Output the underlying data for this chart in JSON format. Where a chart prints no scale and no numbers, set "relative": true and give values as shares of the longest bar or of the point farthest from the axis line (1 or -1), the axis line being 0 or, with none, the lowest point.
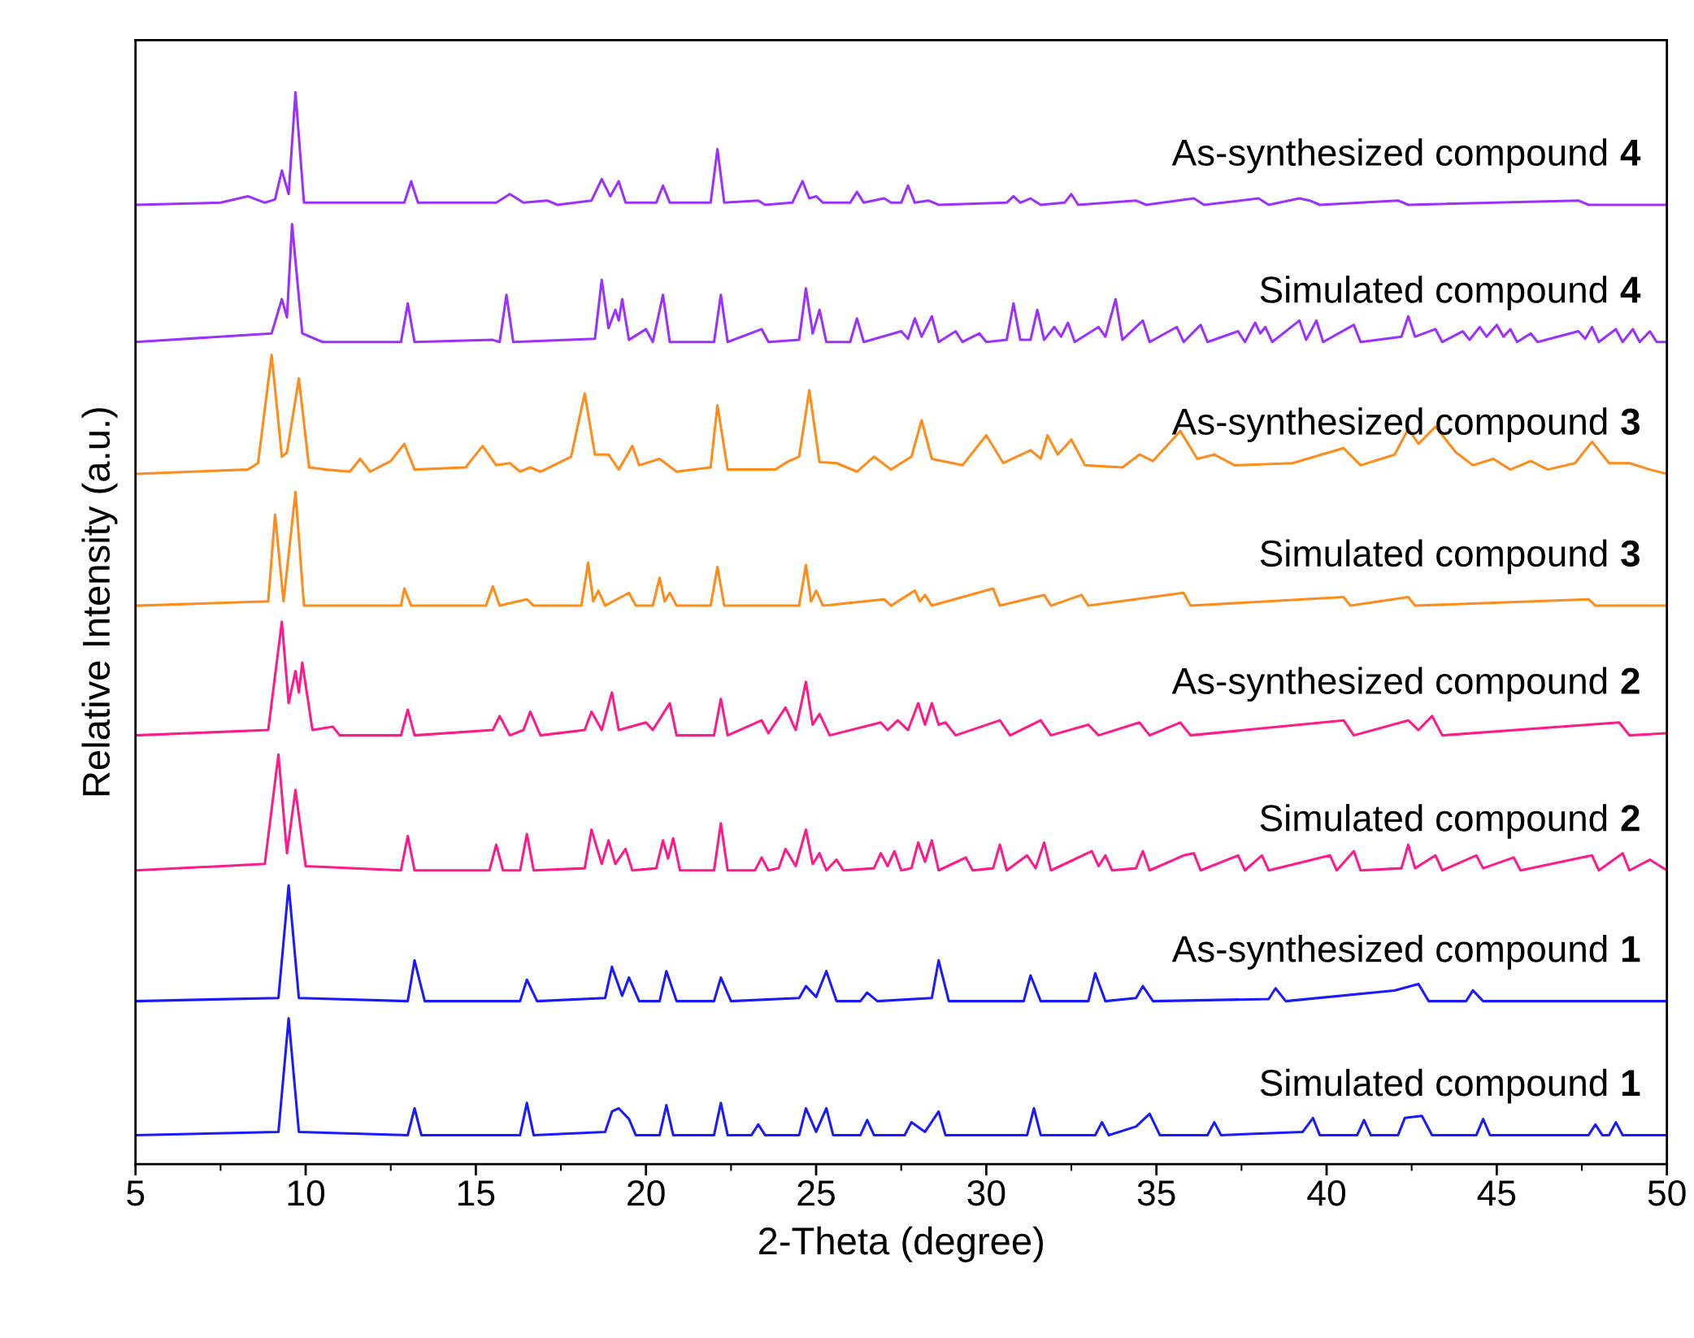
{
  "chart_data": {
    "type": "line",
    "relative": true,
    "xlabel": "2-Theta (degree)",
    "ylabel": "Relative Intensity (a.u.)",
    "xlim": [
      5,
      50
    ],
    "xticks": [
      5,
      10,
      15,
      20,
      25,
      30,
      35,
      40,
      45,
      50
    ],
    "legend": false,
    "marker": "none",
    "line_style": "solid",
    "series": [
      {
        "name": "Simulated compound 1",
        "color": "#1a1aff",
        "x": [
          5,
          9.2,
          9.5,
          9.8,
          13.0,
          13.2,
          13.4,
          16.3,
          16.5,
          16.7,
          18.8,
          19.0,
          19.2,
          19.5,
          19.7,
          20.4,
          20.6,
          20.8,
          22.0,
          22.2,
          22.4,
          23.1,
          23.3,
          23.5,
          24.5,
          24.7,
          25.0,
          25.3,
          25.5,
          26.3,
          26.5,
          26.7,
          27.6,
          27.8,
          28.2,
          28.6,
          28.8,
          31.2,
          31.4,
          31.6,
          33.2,
          33.4,
          33.6,
          34.4,
          34.8,
          35.1,
          36.5,
          36.7,
          36.9,
          39.3,
          39.6,
          39.8,
          40.9,
          41.1,
          41.3,
          42.1,
          42.3,
          42.8,
          43.1,
          44.4,
          44.6,
          44.8,
          47.7,
          47.9,
          48.1,
          48.3,
          48.5,
          48.7,
          50
        ],
        "values": [
          0.027,
          0.03,
          0.136,
          0.03,
          0.027,
          0.052,
          0.027,
          0.027,
          0.057,
          0.027,
          0.03,
          0.049,
          0.052,
          0.042,
          0.027,
          0.027,
          0.055,
          0.027,
          0.027,
          0.057,
          0.027,
          0.027,
          0.037,
          0.027,
          0.027,
          0.052,
          0.03,
          0.052,
          0.027,
          0.027,
          0.041,
          0.027,
          0.027,
          0.039,
          0.03,
          0.049,
          0.027,
          0.027,
          0.052,
          0.027,
          0.027,
          0.039,
          0.027,
          0.035,
          0.047,
          0.027,
          0.027,
          0.039,
          0.027,
          0.03,
          0.043,
          0.027,
          0.027,
          0.041,
          0.027,
          0.027,
          0.043,
          0.045,
          0.027,
          0.027,
          0.042,
          0.027,
          0.027,
          0.037,
          0.027,
          0.027,
          0.039,
          0.027,
          0.027
        ]
      },
      {
        "name": "As-synthesized compound 1",
        "color": "#1a1aff",
        "x": [
          5,
          9.2,
          9.5,
          9.8,
          13.0,
          13.2,
          13.5,
          16.3,
          16.5,
          16.8,
          18.8,
          19.0,
          19.3,
          19.5,
          19.8,
          20.4,
          20.6,
          20.9,
          22.0,
          22.2,
          22.5,
          24.5,
          24.7,
          25.0,
          25.3,
          25.6,
          26.3,
          26.5,
          26.8,
          28.4,
          28.6,
          28.9,
          31.1,
          31.3,
          31.6,
          33.0,
          33.2,
          33.5,
          34.4,
          34.6,
          34.9,
          38.3,
          38.5,
          38.8,
          42.0,
          42.7,
          43.0,
          44.1,
          44.3,
          44.6,
          50
        ],
        "values": [
          0.152,
          0.155,
          0.26,
          0.155,
          0.152,
          0.19,
          0.152,
          0.152,
          0.172,
          0.152,
          0.155,
          0.184,
          0.157,
          0.174,
          0.152,
          0.152,
          0.18,
          0.152,
          0.152,
          0.174,
          0.152,
          0.155,
          0.166,
          0.156,
          0.18,
          0.152,
          0.152,
          0.16,
          0.152,
          0.155,
          0.19,
          0.152,
          0.152,
          0.176,
          0.152,
          0.152,
          0.178,
          0.152,
          0.155,
          0.166,
          0.152,
          0.154,
          0.164,
          0.152,
          0.162,
          0.168,
          0.152,
          0.152,
          0.162,
          0.152,
          0.152
        ]
      },
      {
        "name": "Simulated compound 2",
        "color": "#ff1a8c",
        "x": [
          5,
          8.8,
          9.2,
          9.45,
          9.7,
          10.0,
          12.8,
          13.0,
          13.2,
          15.4,
          15.6,
          15.8,
          16.3,
          16.5,
          16.7,
          18.2,
          18.4,
          18.7,
          18.9,
          19.1,
          19.4,
          19.6,
          20.3,
          20.5,
          20.65,
          20.8,
          21.0,
          22.0,
          22.2,
          22.4,
          23.2,
          23.4,
          23.6,
          23.9,
          24.1,
          24.4,
          24.7,
          24.9,
          25.1,
          25.3,
          25.6,
          25.8,
          26.7,
          26.9,
          27.1,
          27.3,
          27.5,
          27.8,
          28.0,
          28.2,
          28.4,
          28.6,
          29.4,
          29.6,
          30.2,
          30.4,
          30.6,
          31.2,
          31.45,
          31.7,
          31.9,
          33.1,
          33.3,
          33.5,
          33.7,
          34.4,
          34.6,
          34.8,
          35.8,
          36.1,
          36.3,
          37.4,
          37.6,
          38.1,
          38.3,
          40.1,
          40.3,
          40.8,
          41.0,
          42.2,
          42.4,
          42.6,
          43.2,
          43.4,
          44.4,
          44.6,
          45.5,
          45.7,
          47.8,
          48.0,
          48.7,
          48.9,
          49.5,
          50
        ],
        "values": [
          0.274,
          0.28,
          0.382,
          0.29,
          0.349,
          0.278,
          0.274,
          0.306,
          0.274,
          0.274,
          0.298,
          0.274,
          0.274,
          0.308,
          0.274,
          0.276,
          0.312,
          0.28,
          0.302,
          0.28,
          0.294,
          0.274,
          0.276,
          0.302,
          0.285,
          0.304,
          0.274,
          0.274,
          0.318,
          0.274,
          0.274,
          0.286,
          0.274,
          0.276,
          0.294,
          0.278,
          0.312,
          0.28,
          0.29,
          0.274,
          0.284,
          0.274,
          0.276,
          0.29,
          0.278,
          0.292,
          0.274,
          0.276,
          0.3,
          0.282,
          0.302,
          0.274,
          0.286,
          0.274,
          0.276,
          0.298,
          0.274,
          0.288,
          0.276,
          0.3,
          0.274,
          0.292,
          0.278,
          0.288,
          0.274,
          0.276,
          0.292,
          0.274,
          0.288,
          0.29,
          0.274,
          0.288,
          0.274,
          0.288,
          0.274,
          0.288,
          0.274,
          0.292,
          0.274,
          0.276,
          0.298,
          0.276,
          0.288,
          0.274,
          0.288,
          0.276,
          0.286,
          0.274,
          0.288,
          0.274,
          0.29,
          0.274,
          0.284,
          0.274
        ]
      },
      {
        "name": "As-synthesized compound 2",
        "color": "#ff1a8c",
        "x": [
          5,
          8.9,
          9.3,
          9.5,
          9.7,
          9.8,
          9.9,
          10.2,
          10.8,
          11.0,
          12.8,
          13.0,
          13.2,
          15.5,
          15.7,
          16.0,
          16.4,
          16.6,
          16.9,
          18.2,
          18.4,
          18.7,
          19.0,
          19.2,
          20.0,
          20.2,
          20.7,
          20.9,
          22.0,
          22.2,
          22.4,
          23.4,
          23.6,
          24.1,
          24.4,
          24.7,
          24.9,
          25.1,
          25.4,
          26.9,
          27.1,
          27.4,
          27.7,
          28.0,
          28.2,
          28.4,
          28.6,
          28.8,
          29.1,
          30.4,
          30.7,
          31.6,
          31.9,
          33.0,
          33.3,
          34.5,
          34.8,
          35.7,
          36.0,
          40.5,
          40.8,
          42.4,
          42.7,
          43.1,
          43.4,
          48.6,
          48.9,
          50
        ],
        "values": [
          0.4,
          0.405,
          0.506,
          0.43,
          0.46,
          0.44,
          0.468,
          0.405,
          0.408,
          0.4,
          0.4,
          0.424,
          0.4,
          0.405,
          0.418,
          0.4,
          0.405,
          0.422,
          0.4,
          0.405,
          0.422,
          0.405,
          0.44,
          0.405,
          0.412,
          0.405,
          0.43,
          0.4,
          0.4,
          0.434,
          0.4,
          0.414,
          0.402,
          0.426,
          0.405,
          0.45,
          0.41,
          0.42,
          0.4,
          0.412,
          0.405,
          0.414,
          0.405,
          0.43,
          0.41,
          0.43,
          0.41,
          0.412,
          0.4,
          0.414,
          0.4,
          0.414,
          0.4,
          0.41,
          0.4,
          0.412,
          0.4,
          0.412,
          0.4,
          0.414,
          0.4,
          0.414,
          0.405,
          0.418,
          0.4,
          0.412,
          0.4,
          0.402
        ]
      },
      {
        "name": "Simulated compound 3",
        "color": "#ff8c1a",
        "x": [
          5,
          8.9,
          9.1,
          9.35,
          9.7,
          9.95,
          12.8,
          12.9,
          13.1,
          15.3,
          15.5,
          15.7,
          16.5,
          16.7,
          18.1,
          18.3,
          18.45,
          18.6,
          18.8,
          19.5,
          19.7,
          20.2,
          20.4,
          20.55,
          20.7,
          20.9,
          21.9,
          22.1,
          22.3,
          24.5,
          24.7,
          24.85,
          25.0,
          25.2,
          27.0,
          27.2,
          27.9,
          28.05,
          28.2,
          28.4,
          30.2,
          30.4,
          31.7,
          31.9,
          32.8,
          33.0,
          35.8,
          36.0,
          40.5,
          40.7,
          42.4,
          42.6,
          47.7,
          47.9,
          50
        ],
        "values": [
          0.521,
          0.525,
          0.606,
          0.525,
          0.627,
          0.521,
          0.521,
          0.537,
          0.521,
          0.521,
          0.539,
          0.521,
          0.527,
          0.521,
          0.521,
          0.561,
          0.525,
          0.535,
          0.521,
          0.533,
          0.521,
          0.521,
          0.547,
          0.525,
          0.533,
          0.521,
          0.521,
          0.557,
          0.521,
          0.521,
          0.559,
          0.525,
          0.535,
          0.521,
          0.527,
          0.521,
          0.535,
          0.525,
          0.531,
          0.521,
          0.537,
          0.521,
          0.531,
          0.521,
          0.531,
          0.521,
          0.533,
          0.521,
          0.529,
          0.521,
          0.529,
          0.521,
          0.527,
          0.521,
          0.521
        ]
      },
      {
        "name": "As-synthesized compound 3",
        "color": "#ff8c1a",
        "x": [
          5,
          8.3,
          8.6,
          9.0,
          9.3,
          9.45,
          9.8,
          10.1,
          10.6,
          11.3,
          11.6,
          11.9,
          12.5,
          12.9,
          13.2,
          14.7,
          15.2,
          15.6,
          16.0,
          16.3,
          16.6,
          16.9,
          17.8,
          18.2,
          18.5,
          18.9,
          19.2,
          19.6,
          19.8,
          20.4,
          20.9,
          21.9,
          22.1,
          22.4,
          23.8,
          24.2,
          24.5,
          24.8,
          25.1,
          25.6,
          26.2,
          26.7,
          27.2,
          27.8,
          28.1,
          28.4,
          29.3,
          30.0,
          30.5,
          31.3,
          31.6,
          31.8,
          32.1,
          32.5,
          32.9,
          34.0,
          34.5,
          34.9,
          35.7,
          36.2,
          36.7,
          37.3,
          39.0,
          40.5,
          41.0,
          42.0,
          42.4,
          42.7,
          43.2,
          43.8,
          44.3,
          44.9,
          45.4,
          46.0,
          46.5,
          47.3,
          47.8,
          48.3,
          48.9,
          49.5,
          50
        ],
        "values": [
          0.644,
          0.648,
          0.654,
          0.755,
          0.66,
          0.664,
          0.733,
          0.65,
          0.648,
          0.646,
          0.658,
          0.646,
          0.656,
          0.672,
          0.648,
          0.65,
          0.67,
          0.652,
          0.654,
          0.646,
          0.65,
          0.646,
          0.66,
          0.719,
          0.662,
          0.662,
          0.648,
          0.67,
          0.652,
          0.658,
          0.646,
          0.65,
          0.708,
          0.648,
          0.648,
          0.656,
          0.66,
          0.722,
          0.655,
          0.654,
          0.646,
          0.66,
          0.648,
          0.66,
          0.694,
          0.658,
          0.652,
          0.68,
          0.654,
          0.666,
          0.658,
          0.68,
          0.662,
          0.676,
          0.652,
          0.65,
          0.662,
          0.656,
          0.684,
          0.658,
          0.662,
          0.652,
          0.654,
          0.668,
          0.652,
          0.662,
          0.686,
          0.672,
          0.688,
          0.664,
          0.652,
          0.658,
          0.648,
          0.656,
          0.648,
          0.654,
          0.674,
          0.654,
          0.654,
          0.648,
          0.644
        ]
      },
      {
        "name": "Simulated compound 4",
        "color": "#9b30ff",
        "x": [
          5,
          9.0,
          9.3,
          9.45,
          9.6,
          9.9,
          10.5,
          12.8,
          13.0,
          13.2,
          15.5,
          15.7,
          15.9,
          16.1,
          18.5,
          18.7,
          18.9,
          19.1,
          19.2,
          19.3,
          19.5,
          20.0,
          20.2,
          20.5,
          20.7,
          22.0,
          22.2,
          22.4,
          23.4,
          23.6,
          24.5,
          24.7,
          24.9,
          25.1,
          25.3,
          26.0,
          26.2,
          26.4,
          27.5,
          27.7,
          27.9,
          28.1,
          28.4,
          28.6,
          29.1,
          29.3,
          29.8,
          30.0,
          30.6,
          30.8,
          31.0,
          31.3,
          31.5,
          31.7,
          32.0,
          32.2,
          32.4,
          32.6,
          33.3,
          33.5,
          33.8,
          34.0,
          34.6,
          34.8,
          35.6,
          35.8,
          36.3,
          36.5,
          37.4,
          37.6,
          37.9,
          38.05,
          38.2,
          38.4,
          39.2,
          39.4,
          39.7,
          39.9,
          40.8,
          41.0,
          42.2,
          42.4,
          42.6,
          43.2,
          43.4,
          44.0,
          44.2,
          44.5,
          44.7,
          45.0,
          45.2,
          45.4,
          45.6,
          46.0,
          46.2,
          47.4,
          47.6,
          47.8,
          48.0,
          48.5,
          48.7,
          49.0,
          49.2,
          49.5,
          49.7,
          50
        ],
        "values": [
          0.767,
          0.775,
          0.807,
          0.79,
          0.877,
          0.775,
          0.767,
          0.767,
          0.803,
          0.767,
          0.769,
          0.767,
          0.811,
          0.767,
          0.77,
          0.825,
          0.78,
          0.797,
          0.787,
          0.807,
          0.769,
          0.779,
          0.767,
          0.811,
          0.767,
          0.767,
          0.811,
          0.767,
          0.779,
          0.767,
          0.769,
          0.817,
          0.775,
          0.797,
          0.767,
          0.767,
          0.789,
          0.767,
          0.777,
          0.77,
          0.789,
          0.772,
          0.791,
          0.767,
          0.777,
          0.767,
          0.775,
          0.767,
          0.769,
          0.803,
          0.769,
          0.769,
          0.797,
          0.769,
          0.781,
          0.772,
          0.785,
          0.767,
          0.781,
          0.772,
          0.807,
          0.769,
          0.787,
          0.767,
          0.781,
          0.767,
          0.783,
          0.767,
          0.777,
          0.767,
          0.785,
          0.775,
          0.781,
          0.767,
          0.787,
          0.769,
          0.787,
          0.767,
          0.783,
          0.767,
          0.772,
          0.791,
          0.772,
          0.779,
          0.767,
          0.777,
          0.769,
          0.781,
          0.772,
          0.783,
          0.772,
          0.779,
          0.767,
          0.775,
          0.767,
          0.777,
          0.77,
          0.781,
          0.767,
          0.779,
          0.767,
          0.779,
          0.767,
          0.777,
          0.767,
          0.767
        ]
      },
      {
        "name": "As-synthesized compound 4",
        "color": "#9b30ff",
        "x": [
          5,
          7.5,
          8.3,
          8.8,
          9.1,
          9.3,
          9.5,
          9.7,
          9.95,
          11.5,
          12.9,
          13.1,
          13.3,
          15.6,
          16.0,
          16.4,
          17.1,
          17.4,
          18.4,
          18.7,
          18.95,
          19.2,
          19.4,
          20.3,
          20.5,
          20.7,
          21.9,
          22.1,
          22.3,
          23.3,
          23.5,
          24.3,
          24.6,
          24.8,
          25.0,
          25.2,
          26.0,
          26.2,
          26.4,
          27.0,
          27.2,
          27.5,
          27.7,
          27.9,
          28.3,
          28.6,
          30.6,
          30.8,
          31.0,
          31.3,
          31.6,
          32.3,
          32.5,
          32.7,
          34.4,
          34.7,
          36.1,
          36.4,
          38.0,
          38.3,
          39.2,
          39.5,
          39.8,
          42.1,
          42.4,
          47.4,
          47.7,
          50
        ],
        "values": [
          0.895,
          0.897,
          0.903,
          0.897,
          0.9,
          0.927,
          0.905,
          1.0,
          0.897,
          0.897,
          0.897,
          0.917,
          0.897,
          0.897,
          0.905,
          0.897,
          0.899,
          0.895,
          0.899,
          0.919,
          0.903,
          0.917,
          0.897,
          0.897,
          0.913,
          0.897,
          0.897,
          0.947,
          0.897,
          0.899,
          0.895,
          0.897,
          0.917,
          0.901,
          0.903,
          0.897,
          0.897,
          0.907,
          0.897,
          0.901,
          0.897,
          0.897,
          0.913,
          0.897,
          0.899,
          0.895,
          0.897,
          0.903,
          0.897,
          0.901,
          0.895,
          0.897,
          0.905,
          0.895,
          0.899,
          0.895,
          0.901,
          0.895,
          0.901,
          0.895,
          0.901,
          0.899,
          0.895,
          0.899,
          0.895,
          0.899,
          0.895,
          0.895
        ]
      }
    ]
  }
}
